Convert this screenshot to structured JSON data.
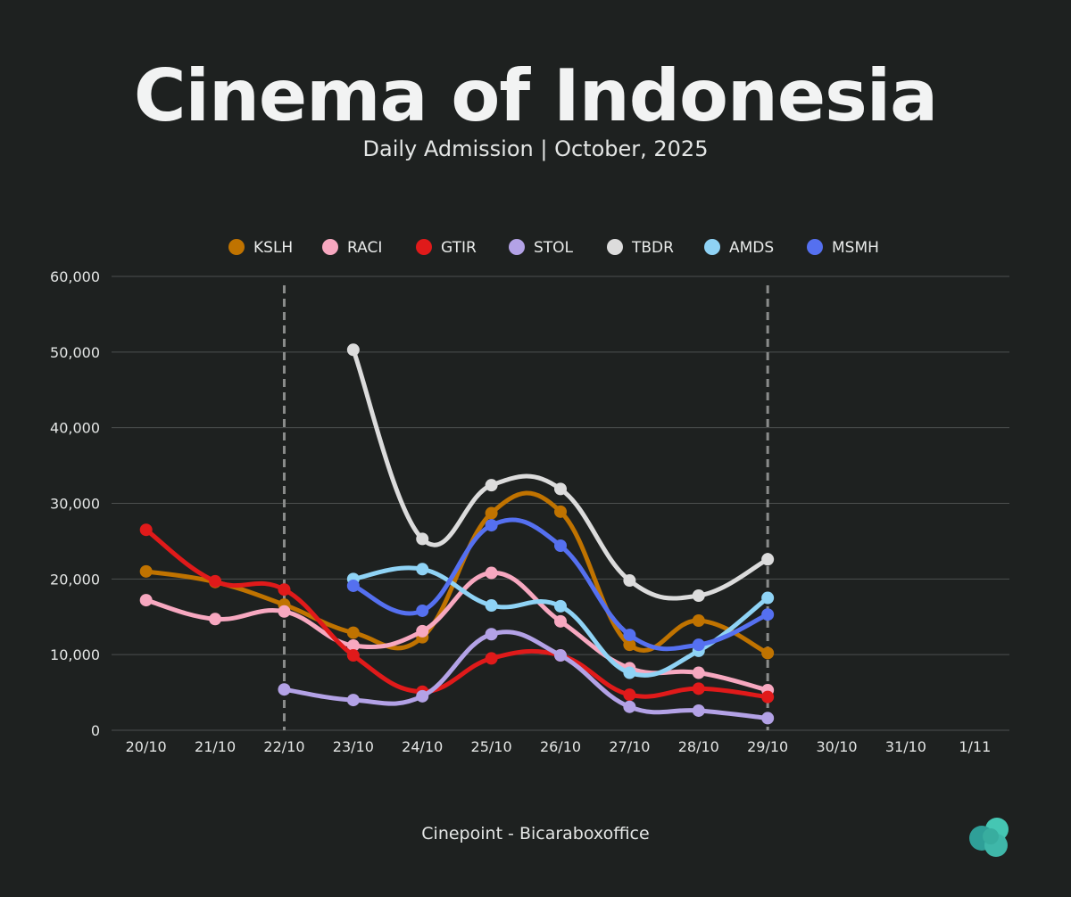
{
  "page": {
    "title": "Cinema of Indonesia",
    "subtitle": "Daily Admission | October, 2025",
    "source": "Cinepoint - Bicaraboxoffice"
  },
  "chart_data": {
    "type": "line",
    "title": "Cinema of Indonesia",
    "subtitle": "Daily Admission | October, 2025",
    "xlabel": "",
    "ylabel": "",
    "categories": [
      "20/10",
      "21/10",
      "22/10",
      "23/10",
      "24/10",
      "25/10",
      "26/10",
      "27/10",
      "28/10",
      "29/10",
      "30/10",
      "31/10",
      "1/11"
    ],
    "ylim": [
      0,
      60000
    ],
    "yticks": [
      0,
      10000,
      20000,
      30000,
      40000,
      50000,
      60000
    ],
    "ytick_labels": [
      "0",
      "10,000",
      "20,000",
      "30,000",
      "40,000",
      "50,000",
      "60,000"
    ],
    "grid": true,
    "legend_position": "top-center",
    "reference_lines": [
      "22/10",
      "29/10"
    ],
    "series": [
      {
        "name": "KSLH",
        "color": "#c07300",
        "values": [
          21000,
          19600,
          16600,
          12900,
          12300,
          28700,
          28900,
          11300,
          14500,
          10200,
          null,
          null,
          null
        ]
      },
      {
        "name": "RACI",
        "color": "#f7a8c0",
        "values": [
          17200,
          14700,
          15700,
          11200,
          13100,
          20800,
          14400,
          8200,
          7600,
          5300,
          null,
          null,
          null
        ]
      },
      {
        "name": "GTIR",
        "color": "#e01a1a",
        "values": [
          26500,
          19700,
          18600,
          9900,
          5100,
          9500,
          9900,
          4700,
          5500,
          4400,
          null,
          null,
          null
        ]
      },
      {
        "name": "STOL",
        "color": "#b3a2e6",
        "values": [
          null,
          null,
          5400,
          4000,
          4500,
          12700,
          9900,
          3100,
          2600,
          1600,
          null,
          null,
          null
        ]
      },
      {
        "name": "TBDR",
        "color": "#dcdcdc",
        "values": [
          null,
          null,
          null,
          50300,
          25300,
          32400,
          31900,
          19800,
          17800,
          22600,
          null,
          null,
          null
        ]
      },
      {
        "name": "AMDS",
        "color": "#8fd3f5",
        "values": [
          null,
          null,
          null,
          20000,
          21300,
          16500,
          16400,
          7600,
          10500,
          17500,
          null,
          null,
          null
        ]
      },
      {
        "name": "MSMH",
        "color": "#5570f0",
        "values": [
          null,
          null,
          null,
          19100,
          15800,
          27100,
          24400,
          12600,
          11300,
          15300,
          null,
          null,
          null
        ]
      }
    ]
  },
  "colors": {
    "background": "#1e2120",
    "grid": "#4c504f",
    "reference_line": "#8a8c8b",
    "logo_dark": "#27918f",
    "logo_light": "#45c6b3"
  },
  "logo": {
    "icon": "cloud-logo-icon"
  }
}
